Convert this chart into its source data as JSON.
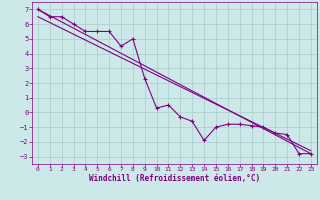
{
  "xlabel": "Windchill (Refroidissement éolien,°C)",
  "bg_color": "#cce8e8",
  "line_color": "#800080",
  "grid_color": "#aacccc",
  "xlim": [
    -0.5,
    23.5
  ],
  "ylim": [
    -3.5,
    7.5
  ],
  "xticks": [
    0,
    1,
    2,
    3,
    4,
    5,
    6,
    7,
    8,
    9,
    10,
    11,
    12,
    13,
    14,
    15,
    16,
    17,
    18,
    19,
    20,
    21,
    22,
    23
  ],
  "yticks": [
    -3,
    -2,
    -1,
    0,
    1,
    2,
    3,
    4,
    5,
    6,
    7
  ],
  "line1_x": [
    0,
    1,
    2,
    3,
    4,
    5,
    6,
    7,
    8,
    9,
    10,
    11,
    12,
    13,
    14,
    15,
    16,
    17,
    18,
    19,
    20,
    21,
    22,
    23
  ],
  "line1_y": [
    7.0,
    6.5,
    6.5,
    6.0,
    5.5,
    5.5,
    5.5,
    4.5,
    5.0,
    2.3,
    0.3,
    0.5,
    -0.3,
    -0.6,
    -1.9,
    -1.0,
    -0.8,
    -0.8,
    -0.9,
    -1.0,
    -1.4,
    -1.5,
    -2.8,
    -2.8
  ],
  "line2_x": [
    0,
    23
  ],
  "line2_y": [
    7.0,
    -2.8
  ],
  "line3_x": [
    0,
    23
  ],
  "line3_y": [
    6.5,
    -2.6
  ]
}
